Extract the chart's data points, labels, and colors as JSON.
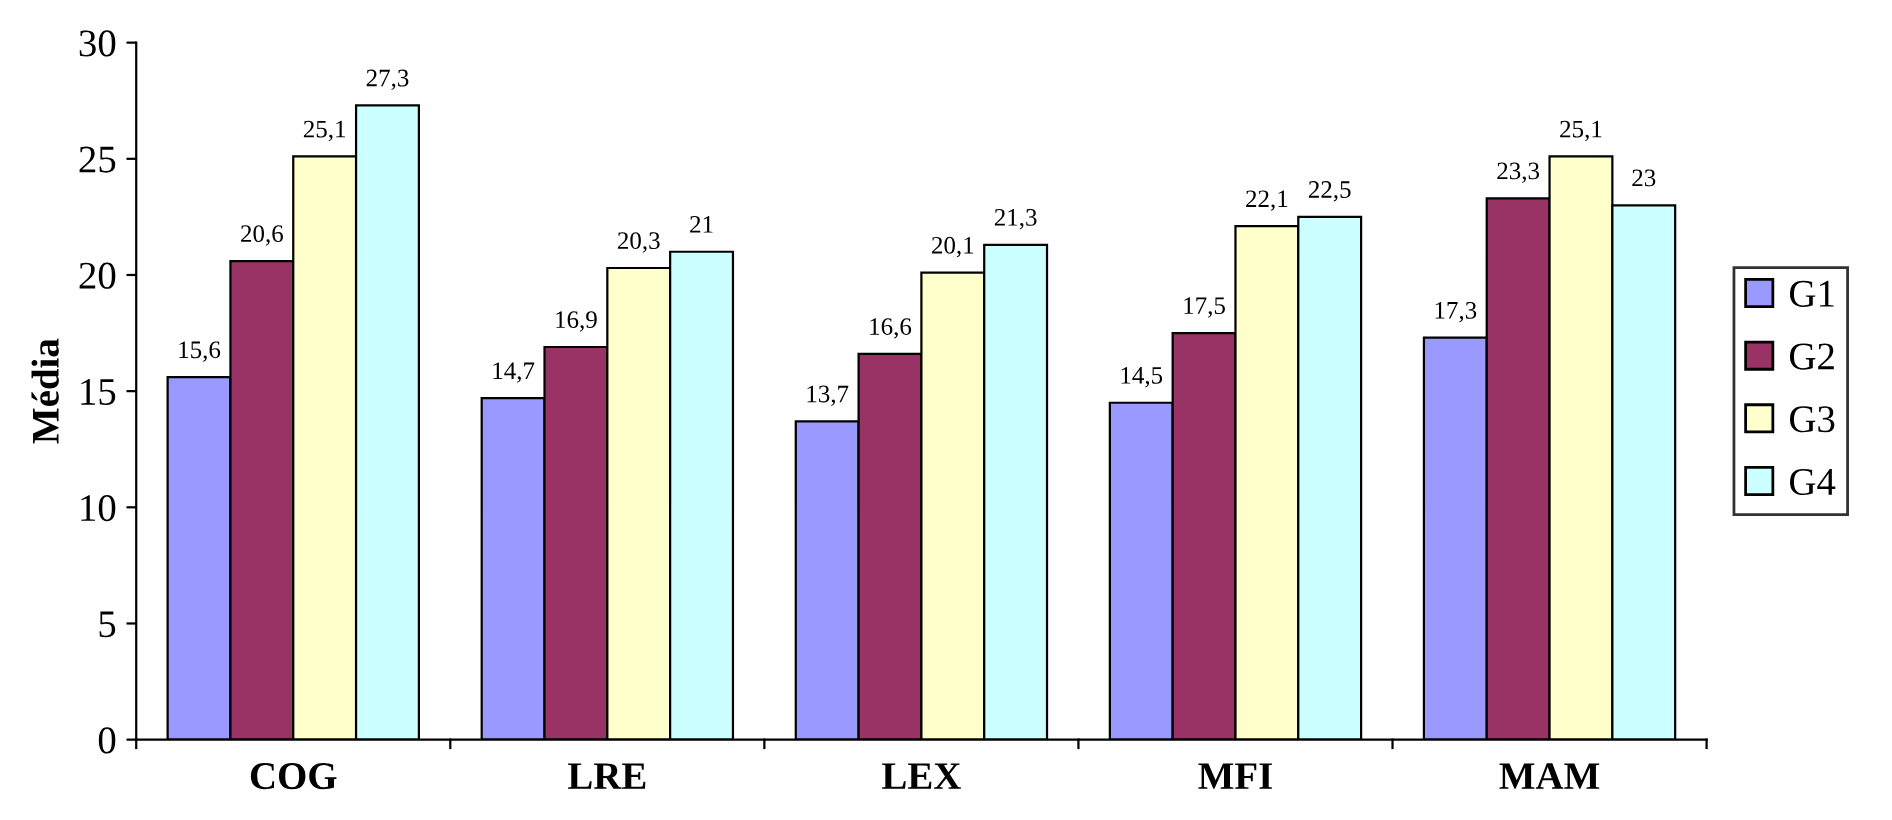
{
  "chart_data": {
    "type": "bar",
    "ylabel": "Média",
    "categories": [
      "COG",
      "LRE",
      "LEX",
      "MFI",
      "MAM"
    ],
    "series": [
      {
        "name": "G1",
        "color": "#9999ff",
        "values": [
          15.6,
          14.7,
          13.7,
          14.5,
          17.3
        ],
        "value_labels": [
          "15,6",
          "14,7",
          "13,7",
          "14,5",
          "17,3"
        ]
      },
      {
        "name": "G2",
        "color": "#993366",
        "values": [
          20.6,
          16.9,
          16.6,
          17.5,
          23.3
        ],
        "value_labels": [
          "20,6",
          "16,9",
          "16,6",
          "17,5",
          "23,3"
        ]
      },
      {
        "name": "G3",
        "color": "#ffffcc",
        "values": [
          25.1,
          20.3,
          20.1,
          22.1,
          25.1
        ],
        "value_labels": [
          "25,1",
          "20,3",
          "20,1",
          "22,1",
          "25,1"
        ]
      },
      {
        "name": "G4",
        "color": "#ccffff",
        "values": [
          27.3,
          21,
          21.3,
          22.5,
          23
        ],
        "value_labels": [
          "27,3",
          "21",
          "21,3",
          "22,5",
          "23"
        ]
      }
    ],
    "ylim": [
      0,
      30
    ],
    "yticks": [
      0,
      5,
      10,
      15,
      20,
      25,
      30
    ],
    "grid": false,
    "legend": "right"
  }
}
